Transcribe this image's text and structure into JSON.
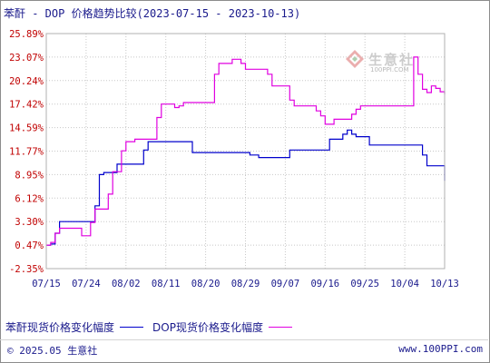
{
  "title": "苯酐 - DOP 价格趋势比较(2023-07-15 - 2023-10-13)",
  "watermark": {
    "brand": "生意社",
    "url": "100PPI.COM",
    "icon": "diamond-logo-icon"
  },
  "legend": [
    {
      "label": "苯酐现货价格变化幅度",
      "color": "#0000cc"
    },
    {
      "label": "DOP现货价格变化幅度",
      "color": "#e000e0"
    }
  ],
  "footer": {
    "copyright": "© 2025.05 生意社",
    "site": "www.100PPI.com"
  },
  "chart_data": {
    "type": "line",
    "title": "苯酐 - DOP 价格趋势比较(2023-07-15 - 2023-10-13)",
    "y_ticks": [
      "25.89%",
      "23.07%",
      "20.24%",
      "17.42%",
      "14.59%",
      "11.77%",
      "8.95%",
      "6.12%",
      "3.30%",
      "0.47%",
      "-2.35%"
    ],
    "ylim": [
      -2.35,
      25.89
    ],
    "x_ticks": [
      "07/15",
      "07/24",
      "08/02",
      "08/11",
      "08/20",
      "08/29",
      "09/07",
      "09/16",
      "09/25",
      "10/04",
      "10/13"
    ],
    "xlim": [
      "07/15",
      "10/13"
    ],
    "grid": true,
    "legend_position": "bottom",
    "series": [
      {
        "name": "苯酐现货价格变化幅度",
        "color": "#0000cc",
        "x": [
          "07/15",
          "07/16",
          "07/17",
          "07/18",
          "07/19",
          "07/20",
          "07/21",
          "07/22",
          "07/23",
          "07/24",
          "07/25",
          "07/26",
          "07/27",
          "07/28",
          "07/29",
          "07/30",
          "07/31",
          "08/01",
          "08/02",
          "08/03",
          "08/04",
          "08/05",
          "08/06",
          "08/07",
          "08/08",
          "08/09",
          "08/10",
          "08/11",
          "08/12",
          "08/13",
          "08/14",
          "08/15",
          "08/16",
          "08/17",
          "08/18",
          "08/19",
          "08/20",
          "08/21",
          "08/22",
          "08/23",
          "08/24",
          "08/25",
          "08/26",
          "08/27",
          "08/28",
          "08/29",
          "08/30",
          "08/31",
          "09/01",
          "09/02",
          "09/03",
          "09/04",
          "09/05",
          "09/06",
          "09/07",
          "09/08",
          "09/09",
          "09/10",
          "09/11",
          "09/12",
          "09/13",
          "09/14",
          "09/15",
          "09/16",
          "09/17",
          "09/18",
          "09/19",
          "09/20",
          "09/21",
          "09/22",
          "09/23",
          "09/24",
          "09/25",
          "09/26",
          "09/27",
          "09/28",
          "09/29",
          "09/30",
          "10/01",
          "10/02",
          "10/03",
          "10/04",
          "10/05",
          "10/06",
          "10/07",
          "10/08",
          "10/09",
          "10/10",
          "10/11",
          "10/12",
          "10/13"
        ],
        "y": [
          0.47,
          0.6,
          1.9,
          3.3,
          3.3,
          3.3,
          3.3,
          3.3,
          3.3,
          3.3,
          3.3,
          5.2,
          8.95,
          9.2,
          9.2,
          9.2,
          10.2,
          10.2,
          10.2,
          10.2,
          10.2,
          10.2,
          11.9,
          12.9,
          12.9,
          12.9,
          12.9,
          12.9,
          12.9,
          12.9,
          12.9,
          12.9,
          12.9,
          11.6,
          11.6,
          11.6,
          11.6,
          11.6,
          11.6,
          11.6,
          11.6,
          11.6,
          11.6,
          11.6,
          11.6,
          11.6,
          11.3,
          11.3,
          11.0,
          11.0,
          11.0,
          11.0,
          11.0,
          11.0,
          11.0,
          11.9,
          11.9,
          11.9,
          11.9,
          11.9,
          11.9,
          11.9,
          11.9,
          11.9,
          13.2,
          13.2,
          13.2,
          13.8,
          14.3,
          13.8,
          13.5,
          13.5,
          13.5,
          12.5,
          12.5,
          12.5,
          12.5,
          12.5,
          12.5,
          12.5,
          12.5,
          12.5,
          12.5,
          12.5,
          12.5,
          11.3,
          10.0,
          10.0,
          10.0,
          10.0,
          8.2
        ]
      },
      {
        "name": "DOP现货价格变化幅度",
        "color": "#e000e0",
        "x": [
          "07/15",
          "07/16",
          "07/17",
          "07/18",
          "07/19",
          "07/20",
          "07/21",
          "07/22",
          "07/23",
          "07/24",
          "07/25",
          "07/26",
          "07/27",
          "07/28",
          "07/29",
          "07/30",
          "07/31",
          "08/01",
          "08/02",
          "08/03",
          "08/04",
          "08/05",
          "08/06",
          "08/07",
          "08/08",
          "08/09",
          "08/10",
          "08/11",
          "08/12",
          "08/13",
          "08/14",
          "08/15",
          "08/16",
          "08/17",
          "08/18",
          "08/19",
          "08/20",
          "08/21",
          "08/22",
          "08/23",
          "08/24",
          "08/25",
          "08/26",
          "08/27",
          "08/28",
          "08/29",
          "08/30",
          "08/31",
          "09/01",
          "09/02",
          "09/03",
          "09/04",
          "09/05",
          "09/06",
          "09/07",
          "09/08",
          "09/09",
          "09/10",
          "09/11",
          "09/12",
          "09/13",
          "09/14",
          "09/15",
          "09/16",
          "09/17",
          "09/18",
          "09/19",
          "09/20",
          "09/21",
          "09/22",
          "09/23",
          "09/24",
          "09/25",
          "09/26",
          "09/27",
          "09/28",
          "09/29",
          "09/30",
          "10/01",
          "10/02",
          "10/03",
          "10/04",
          "10/05",
          "10/06",
          "10/07",
          "10/08",
          "10/09",
          "10/10",
          "10/11",
          "10/12",
          "10/13"
        ],
        "y": [
          0.47,
          0.8,
          1.9,
          2.5,
          2.5,
          2.5,
          2.5,
          2.5,
          1.6,
          1.6,
          3.2,
          4.8,
          4.8,
          4.8,
          6.6,
          9.3,
          9.3,
          11.8,
          12.9,
          12.9,
          13.2,
          13.2,
          13.2,
          13.2,
          13.2,
          15.8,
          17.42,
          17.42,
          17.42,
          17.0,
          17.2,
          17.6,
          17.6,
          17.6,
          17.6,
          17.6,
          17.6,
          17.6,
          21.0,
          22.3,
          22.3,
          22.3,
          22.8,
          22.8,
          22.3,
          21.6,
          21.6,
          21.6,
          21.6,
          21.6,
          21.0,
          19.6,
          19.6,
          19.6,
          19.6,
          17.9,
          17.2,
          17.2,
          17.2,
          17.2,
          17.2,
          16.6,
          16.0,
          15.0,
          15.0,
          15.6,
          15.6,
          15.6,
          15.6,
          16.2,
          16.8,
          17.2,
          17.2,
          17.2,
          17.2,
          17.2,
          17.2,
          17.2,
          17.2,
          17.2,
          17.2,
          17.2,
          17.2,
          23.07,
          21.0,
          19.2,
          18.8,
          19.6,
          19.3,
          18.9,
          18.6
        ]
      }
    ]
  }
}
